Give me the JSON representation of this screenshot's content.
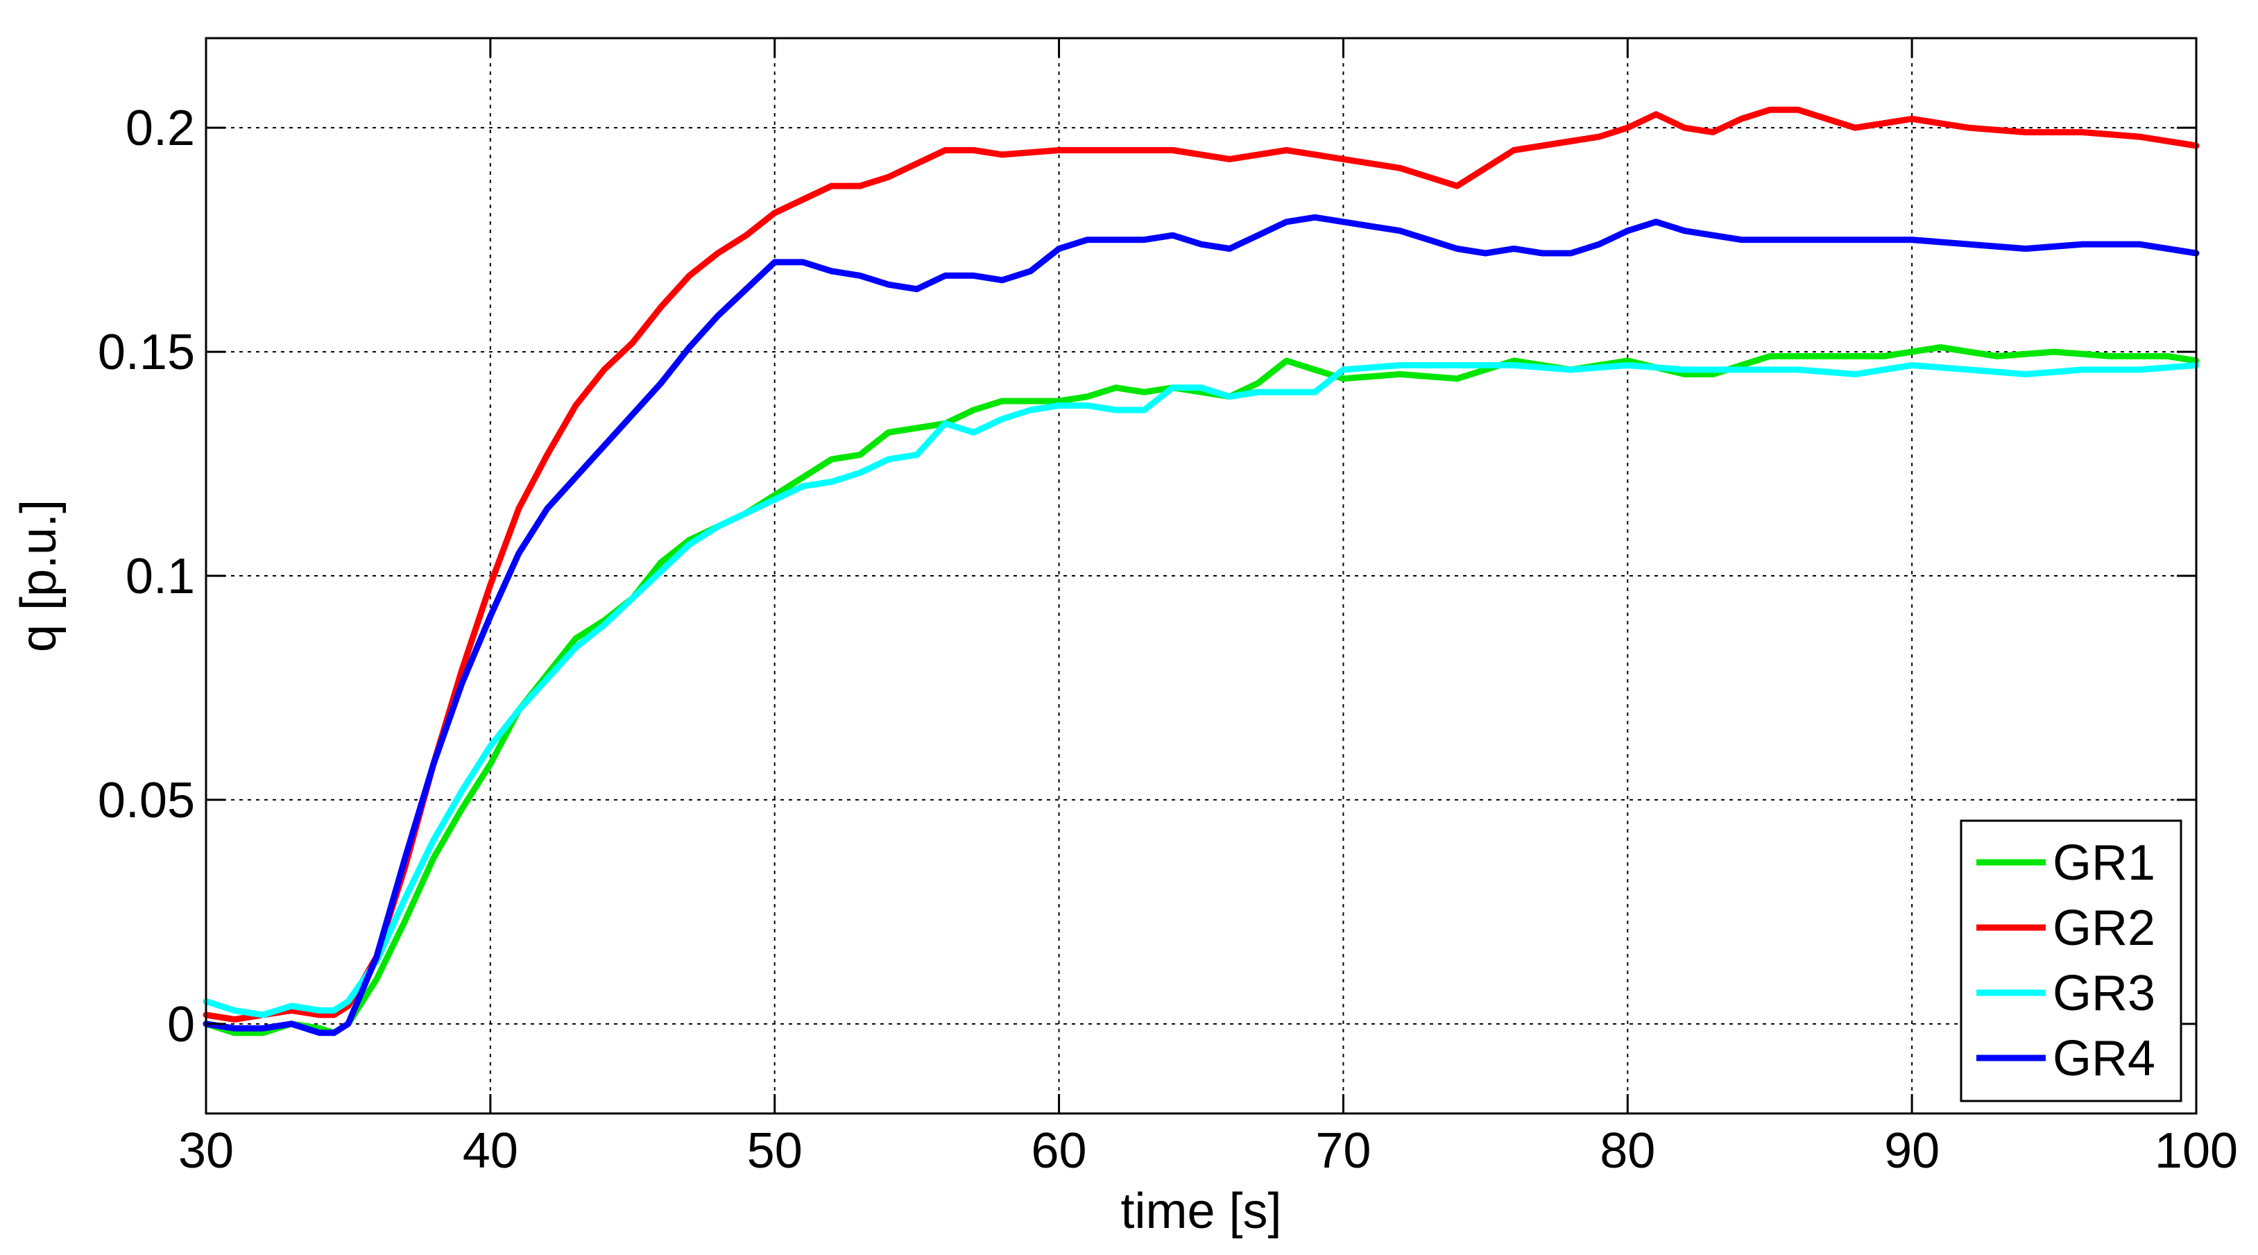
{
  "chart_data": {
    "type": "line",
    "title": "",
    "xlabel": "time [s]",
    "ylabel": "q [p.u.]",
    "xlim": [
      30,
      100
    ],
    "ylim": [
      -0.02,
      0.22
    ],
    "xticks": [
      30,
      40,
      50,
      60,
      70,
      80,
      90,
      100
    ],
    "xtick_labels": [
      "30",
      "40",
      "50",
      "60",
      "70",
      "80",
      "90",
      "100"
    ],
    "yticks": [
      0,
      0.05,
      0.1,
      0.15,
      0.2
    ],
    "ytick_labels": [
      "0",
      "0.05",
      "0.1",
      "0.15",
      "0.2"
    ],
    "grid": true,
    "legend_position": "bottom-right",
    "series": [
      {
        "name": "GR1",
        "color": "#00e600",
        "x": [
          30,
          31,
          32,
          33,
          34,
          34.5,
          35,
          36,
          37,
          38,
          39,
          40,
          41,
          42,
          43,
          44,
          45,
          46,
          47,
          48,
          49,
          50,
          51,
          52,
          53,
          54,
          55,
          56,
          57,
          58,
          59,
          60,
          61,
          62,
          63,
          64,
          65,
          66,
          67,
          68,
          69,
          70,
          72,
          74,
          76,
          78,
          80,
          82,
          83,
          85,
          87,
          89,
          91,
          93,
          95,
          97,
          99,
          100
        ],
        "y": [
          0.0,
          -0.002,
          -0.002,
          0.0,
          -0.001,
          -0.002,
          0.0,
          0.01,
          0.023,
          0.037,
          0.048,
          0.058,
          0.07,
          0.078,
          0.086,
          0.09,
          0.095,
          0.103,
          0.108,
          0.111,
          0.114,
          0.118,
          0.122,
          0.126,
          0.127,
          0.132,
          0.133,
          0.134,
          0.137,
          0.139,
          0.139,
          0.139,
          0.14,
          0.142,
          0.141,
          0.142,
          0.141,
          0.14,
          0.143,
          0.148,
          0.146,
          0.144,
          0.145,
          0.144,
          0.148,
          0.146,
          0.148,
          0.145,
          0.145,
          0.149,
          0.149,
          0.149,
          0.151,
          0.149,
          0.15,
          0.149,
          0.149,
          0.148
        ]
      },
      {
        "name": "GR2",
        "color": "#ff0000",
        "x": [
          30,
          31,
          32,
          33,
          34,
          34.5,
          35,
          36,
          37,
          38,
          39,
          40,
          41,
          42,
          43,
          44,
          45,
          46,
          47,
          48,
          49,
          50,
          51,
          52,
          53,
          54,
          55,
          56,
          57,
          58,
          60,
          62,
          64,
          66,
          68,
          70,
          72,
          74,
          75,
          76,
          78,
          79,
          80,
          81,
          82,
          83,
          84,
          85,
          86,
          88,
          90,
          92,
          94,
          96,
          98,
          100
        ],
        "y": [
          0.002,
          0.001,
          0.002,
          0.003,
          0.002,
          0.002,
          0.004,
          0.015,
          0.035,
          0.058,
          0.079,
          0.098,
          0.115,
          0.127,
          0.138,
          0.146,
          0.152,
          0.16,
          0.167,
          0.172,
          0.176,
          0.181,
          0.184,
          0.187,
          0.187,
          0.189,
          0.192,
          0.195,
          0.195,
          0.194,
          0.195,
          0.195,
          0.195,
          0.193,
          0.195,
          0.193,
          0.191,
          0.187,
          0.191,
          0.195,
          0.197,
          0.198,
          0.2,
          0.203,
          0.2,
          0.199,
          0.202,
          0.204,
          0.204,
          0.2,
          0.202,
          0.2,
          0.199,
          0.199,
          0.198,
          0.196
        ]
      },
      {
        "name": "GR3",
        "color": "#00ffff",
        "x": [
          30,
          31,
          32,
          33,
          34,
          34.5,
          35,
          36,
          37,
          38,
          39,
          40,
          41,
          42,
          43,
          44,
          45,
          46,
          47,
          48,
          49,
          50,
          51,
          52,
          53,
          54,
          55,
          56,
          57,
          58,
          59,
          60,
          61,
          62,
          63,
          64,
          65,
          66,
          67,
          68,
          69,
          70,
          72,
          74,
          76,
          78,
          80,
          82,
          84,
          86,
          88,
          90,
          92,
          94,
          96,
          98,
          100
        ],
        "y": [
          0.005,
          0.003,
          0.002,
          0.004,
          0.003,
          0.003,
          0.005,
          0.014,
          0.028,
          0.041,
          0.052,
          0.062,
          0.07,
          0.077,
          0.084,
          0.089,
          0.095,
          0.101,
          0.107,
          0.111,
          0.114,
          0.117,
          0.12,
          0.121,
          0.123,
          0.126,
          0.127,
          0.134,
          0.132,
          0.135,
          0.137,
          0.138,
          0.138,
          0.137,
          0.137,
          0.142,
          0.142,
          0.14,
          0.141,
          0.141,
          0.141,
          0.146,
          0.147,
          0.147,
          0.147,
          0.146,
          0.147,
          0.146,
          0.146,
          0.146,
          0.145,
          0.147,
          0.146,
          0.145,
          0.146,
          0.146,
          0.147
        ]
      },
      {
        "name": "GR4",
        "color": "#0000ff",
        "x": [
          30,
          31,
          32,
          33,
          34,
          34.5,
          35,
          36,
          37,
          38,
          39,
          40,
          41,
          42,
          43,
          44,
          45,
          46,
          47,
          48,
          49,
          50,
          51,
          52,
          53,
          54,
          55,
          56,
          57,
          58,
          59,
          60,
          61,
          62,
          63,
          64,
          65,
          66,
          67,
          68,
          69,
          70,
          71,
          72,
          73,
          74,
          75,
          76,
          77,
          78,
          79,
          80,
          81,
          82,
          84,
          86,
          88,
          90,
          92,
          94,
          96,
          98,
          100
        ],
        "y": [
          0.0,
          -0.001,
          -0.001,
          0.0,
          -0.002,
          -0.002,
          0.0,
          0.015,
          0.037,
          0.058,
          0.076,
          0.091,
          0.105,
          0.115,
          0.122,
          0.129,
          0.136,
          0.143,
          0.151,
          0.158,
          0.164,
          0.17,
          0.17,
          0.168,
          0.167,
          0.165,
          0.164,
          0.167,
          0.167,
          0.166,
          0.168,
          0.173,
          0.175,
          0.175,
          0.175,
          0.176,
          0.174,
          0.173,
          0.176,
          0.179,
          0.18,
          0.179,
          0.178,
          0.177,
          0.175,
          0.173,
          0.172,
          0.173,
          0.172,
          0.172,
          0.174,
          0.177,
          0.179,
          0.177,
          0.175,
          0.175,
          0.175,
          0.175,
          0.174,
          0.173,
          0.174,
          0.174,
          0.172
        ]
      }
    ]
  }
}
